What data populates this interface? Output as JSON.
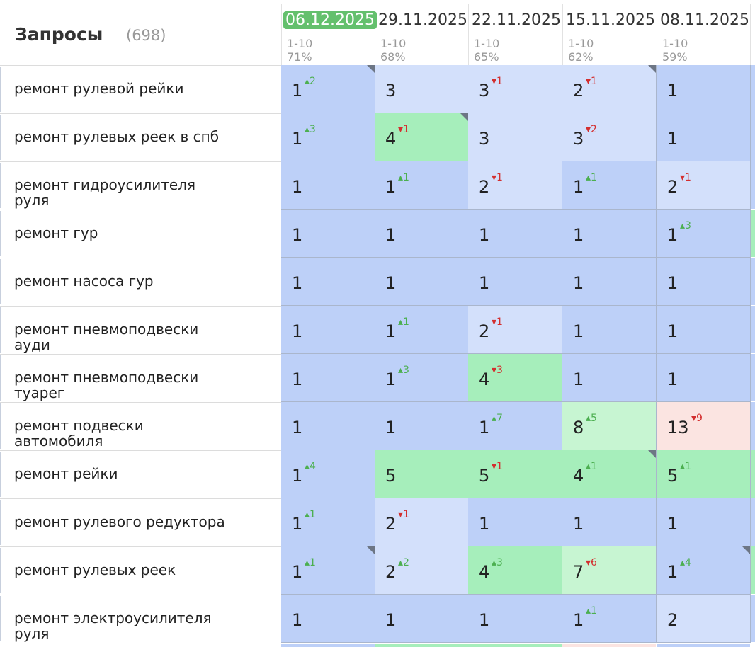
{
  "header": {
    "title": "Запросы",
    "count": "(698)"
  },
  "dates": [
    {
      "date": "06.12.2025",
      "range": "1-10",
      "percent": "71%",
      "active": true
    },
    {
      "date": "29.11.2025",
      "range": "1-10",
      "percent": "68%",
      "active": false
    },
    {
      "date": "22.11.2025",
      "range": "1-10",
      "percent": "65%",
      "active": false
    },
    {
      "date": "15.11.2025",
      "range": "1-10",
      "percent": "62%",
      "active": false
    },
    {
      "date": "08.11.2025",
      "range": "1-10",
      "percent": "59%",
      "active": false
    }
  ],
  "colors": {
    "blue": "#bdd0f8",
    "blue_light": "#d3e0fb",
    "green": "#a6eebb",
    "green_light": "#c7f5d2",
    "red_light": "#fbe4e1",
    "active_date": "#64c06d"
  },
  "rows": [
    {
      "query": "ремонт рулевой рейки",
      "cells": [
        {
          "value": "1",
          "delta": "2",
          "dir": "up",
          "color": "blue",
          "corner": true
        },
        {
          "value": "3",
          "delta": "",
          "dir": "",
          "color": "blue_light",
          "corner": false
        },
        {
          "value": "3",
          "delta": "1",
          "dir": "down",
          "color": "blue_light",
          "corner": false
        },
        {
          "value": "2",
          "delta": "1",
          "dir": "down",
          "color": "blue_light",
          "corner": true
        },
        {
          "value": "1",
          "delta": "",
          "dir": "",
          "color": "blue",
          "corner": false
        }
      ]
    },
    {
      "query": "ремонт рулевых реек в спб",
      "cells": [
        {
          "value": "1",
          "delta": "3",
          "dir": "up",
          "color": "blue",
          "corner": false
        },
        {
          "value": "4",
          "delta": "1",
          "dir": "down",
          "color": "green",
          "corner": true
        },
        {
          "value": "3",
          "delta": "",
          "dir": "",
          "color": "blue_light",
          "corner": false
        },
        {
          "value": "3",
          "delta": "2",
          "dir": "down",
          "color": "blue_light",
          "corner": false
        },
        {
          "value": "1",
          "delta": "",
          "dir": "",
          "color": "blue",
          "corner": false
        }
      ]
    },
    {
      "query": "ремонт гидроусилителя руля",
      "cells": [
        {
          "value": "1",
          "delta": "",
          "dir": "",
          "color": "blue",
          "corner": false
        },
        {
          "value": "1",
          "delta": "1",
          "dir": "up",
          "color": "blue",
          "corner": false
        },
        {
          "value": "2",
          "delta": "1",
          "dir": "down",
          "color": "blue_light",
          "corner": false
        },
        {
          "value": "1",
          "delta": "1",
          "dir": "up",
          "color": "blue",
          "corner": false
        },
        {
          "value": "2",
          "delta": "1",
          "dir": "down",
          "color": "blue_light",
          "corner": false
        }
      ]
    },
    {
      "query": "ремонт гур",
      "cells": [
        {
          "value": "1",
          "delta": "",
          "dir": "",
          "color": "blue",
          "corner": false
        },
        {
          "value": "1",
          "delta": "",
          "dir": "",
          "color": "blue",
          "corner": false
        },
        {
          "value": "1",
          "delta": "",
          "dir": "",
          "color": "blue",
          "corner": false
        },
        {
          "value": "1",
          "delta": "",
          "dir": "",
          "color": "blue",
          "corner": false
        },
        {
          "value": "1",
          "delta": "3",
          "dir": "up",
          "color": "blue",
          "corner": false
        }
      ]
    },
    {
      "query": "ремонт насоса гур",
      "cells": [
        {
          "value": "1",
          "delta": "",
          "dir": "",
          "color": "blue",
          "corner": false
        },
        {
          "value": "1",
          "delta": "",
          "dir": "",
          "color": "blue",
          "corner": false
        },
        {
          "value": "1",
          "delta": "",
          "dir": "",
          "color": "blue",
          "corner": false
        },
        {
          "value": "1",
          "delta": "",
          "dir": "",
          "color": "blue",
          "corner": false
        },
        {
          "value": "1",
          "delta": "",
          "dir": "",
          "color": "blue",
          "corner": false
        }
      ]
    },
    {
      "query": "ремонт пневмоподвески ауди",
      "cells": [
        {
          "value": "1",
          "delta": "",
          "dir": "",
          "color": "blue",
          "corner": false
        },
        {
          "value": "1",
          "delta": "1",
          "dir": "up",
          "color": "blue",
          "corner": false
        },
        {
          "value": "2",
          "delta": "1",
          "dir": "down",
          "color": "blue_light",
          "corner": false
        },
        {
          "value": "1",
          "delta": "",
          "dir": "",
          "color": "blue",
          "corner": false
        },
        {
          "value": "1",
          "delta": "",
          "dir": "",
          "color": "blue",
          "corner": false
        }
      ]
    },
    {
      "query": "ремонт пневмоподвески туарег",
      "cells": [
        {
          "value": "1",
          "delta": "",
          "dir": "",
          "color": "blue",
          "corner": false
        },
        {
          "value": "1",
          "delta": "3",
          "dir": "up",
          "color": "blue",
          "corner": false
        },
        {
          "value": "4",
          "delta": "3",
          "dir": "down",
          "color": "green",
          "corner": false
        },
        {
          "value": "1",
          "delta": "",
          "dir": "",
          "color": "blue",
          "corner": false
        },
        {
          "value": "1",
          "delta": "",
          "dir": "",
          "color": "blue",
          "corner": false
        }
      ]
    },
    {
      "query": "ремонт подвески автомобиля",
      "cells": [
        {
          "value": "1",
          "delta": "",
          "dir": "",
          "color": "blue",
          "corner": false
        },
        {
          "value": "1",
          "delta": "",
          "dir": "",
          "color": "blue",
          "corner": false
        },
        {
          "value": "1",
          "delta": "7",
          "dir": "up",
          "color": "blue",
          "corner": false
        },
        {
          "value": "8",
          "delta": "5",
          "dir": "up",
          "color": "green_light",
          "corner": false
        },
        {
          "value": "13",
          "delta": "9",
          "dir": "down",
          "color": "red_light",
          "corner": false
        }
      ]
    },
    {
      "query": "ремонт рейки",
      "cells": [
        {
          "value": "1",
          "delta": "4",
          "dir": "up",
          "color": "blue",
          "corner": false
        },
        {
          "value": "5",
          "delta": "",
          "dir": "",
          "color": "green",
          "corner": false
        },
        {
          "value": "5",
          "delta": "1",
          "dir": "down",
          "color": "green",
          "corner": false
        },
        {
          "value": "4",
          "delta": "1",
          "dir": "up",
          "color": "green",
          "corner": true
        },
        {
          "value": "5",
          "delta": "1",
          "dir": "up",
          "color": "green",
          "corner": false
        }
      ]
    },
    {
      "query": "ремонт рулевого редуктора",
      "cells": [
        {
          "value": "1",
          "delta": "1",
          "dir": "up",
          "color": "blue",
          "corner": false
        },
        {
          "value": "2",
          "delta": "1",
          "dir": "down",
          "color": "blue_light",
          "corner": false
        },
        {
          "value": "1",
          "delta": "",
          "dir": "",
          "color": "blue",
          "corner": false
        },
        {
          "value": "1",
          "delta": "",
          "dir": "",
          "color": "blue",
          "corner": false
        },
        {
          "value": "1",
          "delta": "",
          "dir": "",
          "color": "blue",
          "corner": false
        }
      ]
    },
    {
      "query": "ремонт рулевых реек",
      "cells": [
        {
          "value": "1",
          "delta": "1",
          "dir": "up",
          "color": "blue",
          "corner": true
        },
        {
          "value": "2",
          "delta": "2",
          "dir": "up",
          "color": "blue_light",
          "corner": false
        },
        {
          "value": "4",
          "delta": "3",
          "dir": "up",
          "color": "green",
          "corner": false
        },
        {
          "value": "7",
          "delta": "6",
          "dir": "down",
          "color": "green_light",
          "corner": false
        },
        {
          "value": "1",
          "delta": "4",
          "dir": "up",
          "color": "blue",
          "corner": true
        }
      ]
    },
    {
      "query": "ремонт электроусилителя руля",
      "cells": [
        {
          "value": "1",
          "delta": "",
          "dir": "",
          "color": "blue",
          "corner": false
        },
        {
          "value": "1",
          "delta": "",
          "dir": "",
          "color": "blue",
          "corner": false
        },
        {
          "value": "1",
          "delta": "",
          "dir": "",
          "color": "blue",
          "corner": false
        },
        {
          "value": "1",
          "delta": "1",
          "dir": "up",
          "color": "blue",
          "corner": false
        },
        {
          "value": "2",
          "delta": "",
          "dir": "",
          "color": "blue_light",
          "corner": false
        }
      ]
    }
  ]
}
